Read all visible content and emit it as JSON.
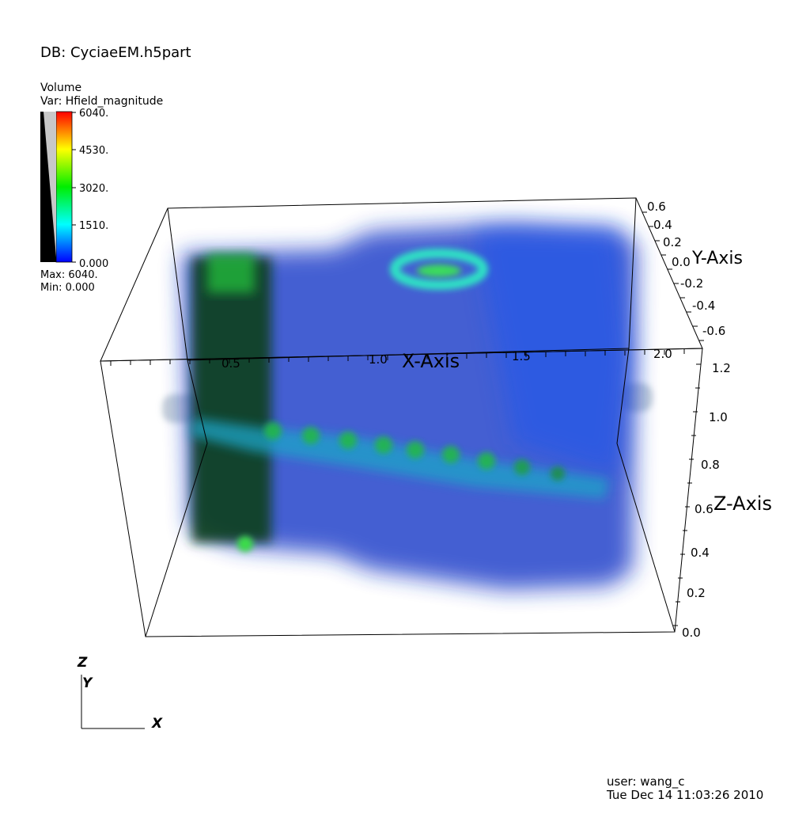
{
  "database": "DB: CyciaeEM.h5part",
  "legend": {
    "plot_type": "Volume",
    "variable": "Var: Hfield_magnitude",
    "ticks": [
      "6040.",
      "4530.",
      "3020.",
      "1510.",
      "0.000"
    ],
    "max": "Max:  6040.",
    "min": "Min:  0.000",
    "colors": [
      "#ff0000",
      "#ffff00",
      "#00ff00",
      "#00ffff",
      "#0000ff"
    ]
  },
  "axes": {
    "x_title": "X-Axis",
    "y_title": "Y-Axis",
    "z_title": "Z-Axis",
    "x_ticks": [
      "0.5",
      "1.0",
      "1.5",
      "2.0"
    ],
    "y_ticks": [
      "0.6",
      "0.4",
      "0.2",
      "0.0",
      "-0.2",
      "-0.4",
      "-0.6"
    ],
    "z_ticks": [
      "1.2",
      "1.0",
      "0.8",
      "0.6",
      "0.4",
      "0.2",
      "0.0"
    ]
  },
  "triad": {
    "z": "Z",
    "y": "Y",
    "x": "X"
  },
  "footer": {
    "user": "user: wang_c",
    "timestamp": "Tue Dec 14 11:03:26 2010"
  }
}
